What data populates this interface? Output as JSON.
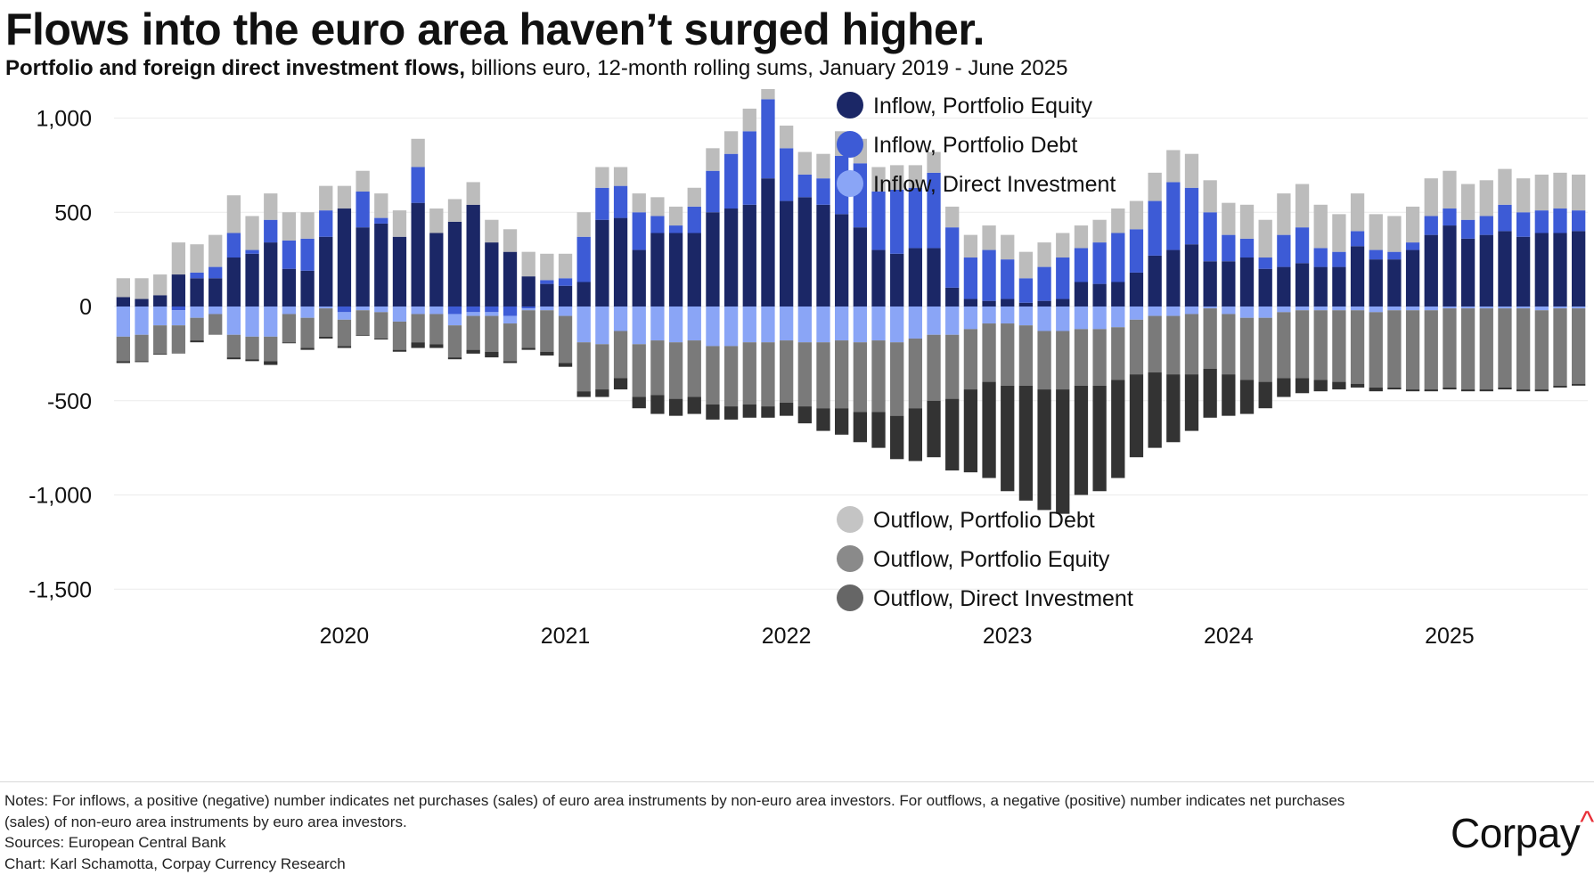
{
  "title": "Flows into the euro area haven’t surged higher.",
  "subtitle": {
    "bold": "Portfolio and foreign direct investment flows,",
    "rest": " billions euro, 12-month rolling sums, January 2019 - June 2025"
  },
  "notes": {
    "line1": "Notes: For inflows, a positive (negative) number indicates net purchases (sales) of euro area instruments by non-euro area investors. For outflows, a negative (positive) number indicates net purchases",
    "line2": "(sales) of non-euro area instruments by euro area investors.",
    "sources": "Sources: European Central Bank",
    "credit": "Chart: Karl Schamotta, Corpay Currency Research"
  },
  "logo": {
    "text": "Corpay",
    "mark": "^"
  },
  "chart_data": {
    "type": "bar",
    "stacked": true,
    "x_start": "January 2019",
    "x_end": "June 2025",
    "x_tick_labels": [
      "2020",
      "2021",
      "2022",
      "2023",
      "2024",
      "2025"
    ],
    "y_ticks": [
      1000,
      500,
      0,
      -500,
      -1000,
      -1500
    ],
    "y_tick_labels": [
      "1,000",
      "500",
      "0",
      "-500",
      "-1,000",
      "-1,500"
    ],
    "ylim": [
      -1620,
      1040
    ],
    "grid": true,
    "legend_placement": "top-center and bottom-center",
    "series": [
      {
        "name": "Inflow, Portfolio Equity",
        "color": "#1b2766",
        "values": [
          50,
          40,
          60,
          170,
          150,
          150,
          260,
          280,
          340,
          200,
          190,
          370,
          520,
          420,
          440,
          370,
          550,
          390,
          450,
          540,
          340,
          290,
          160,
          120,
          110,
          130,
          460,
          470,
          300,
          390,
          390,
          390,
          500,
          520,
          540,
          680,
          560,
          580,
          540,
          490,
          420,
          300,
          280,
          310,
          310,
          100,
          40,
          30,
          40,
          20,
          30,
          40,
          130,
          120,
          130,
          180,
          270,
          300,
          330,
          240,
          240,
          260,
          200,
          210,
          230,
          210,
          210,
          320,
          250,
          250,
          300,
          380,
          430,
          360,
          380,
          400,
          370,
          390,
          390,
          400
        ]
      },
      {
        "name": "Inflow, Portfolio Debt",
        "color": "#3d5bd6",
        "values": [
          0,
          0,
          0,
          -20,
          30,
          60,
          130,
          20,
          120,
          150,
          170,
          140,
          -30,
          190,
          30,
          0,
          190,
          0,
          -40,
          -30,
          -30,
          -50,
          -10,
          20,
          40,
          240,
          170,
          170,
          200,
          90,
          40,
          140,
          220,
          290,
          390,
          420,
          280,
          120,
          140,
          310,
          340,
          310,
          340,
          320,
          400,
          320,
          220,
          270,
          210,
          130,
          180,
          220,
          180,
          220,
          260,
          230,
          290,
          360,
          300,
          260,
          140,
          100,
          60,
          170,
          190,
          100,
          80,
          80,
          50,
          40,
          40,
          100,
          90,
          100,
          100,
          140,
          130,
          120,
          130,
          110
        ]
      },
      {
        "name": "Inflow, Direct Investment",
        "color": "#8aa5f6",
        "values": [
          -160,
          -150,
          -100,
          -80,
          -60,
          -40,
          -150,
          -160,
          -160,
          -40,
          -60,
          -10,
          -40,
          -20,
          -30,
          -80,
          -40,
          -40,
          -60,
          -20,
          -20,
          -40,
          -10,
          -20,
          -50,
          -190,
          -200,
          -130,
          -200,
          -180,
          -190,
          -180,
          -210,
          -210,
          -190,
          -190,
          -180,
          -190,
          -190,
          -180,
          -190,
          -180,
          -190,
          -170,
          -150,
          -150,
          -120,
          -90,
          -90,
          -100,
          -130,
          -130,
          -120,
          -120,
          -110,
          -70,
          -50,
          -50,
          -40,
          -10,
          -40,
          -60,
          -60,
          -30,
          -20,
          -20,
          -20,
          -20,
          -30,
          -20,
          -20,
          -20,
          -10,
          -10,
          -10,
          -10,
          -10,
          -20,
          -10,
          -10
        ]
      },
      {
        "name": "Outflow, Portfolio Debt",
        "color": "#bcbcbc",
        "values": [
          100,
          110,
          110,
          170,
          150,
          170,
          200,
          180,
          140,
          150,
          140,
          130,
          120,
          110,
          130,
          140,
          150,
          130,
          120,
          120,
          120,
          120,
          130,
          140,
          130,
          130,
          110,
          100,
          100,
          100,
          100,
          100,
          120,
          120,
          120,
          110,
          120,
          120,
          130,
          130,
          130,
          130,
          130,
          120,
          110,
          110,
          120,
          130,
          130,
          140,
          130,
          130,
          120,
          120,
          130,
          150,
          150,
          170,
          180,
          170,
          170,
          180,
          200,
          220,
          230,
          230,
          200,
          200,
          190,
          190,
          190,
          200,
          200,
          190,
          190,
          190,
          180,
          190,
          190,
          190
        ]
      },
      {
        "name": "Outflow, Portfolio Equity",
        "color": "#7a7a7a",
        "values": [
          -130,
          -140,
          -150,
          -150,
          -120,
          -110,
          -120,
          -120,
          -130,
          -150,
          -160,
          -150,
          -140,
          -130,
          -140,
          -150,
          -150,
          -160,
          -170,
          -180,
          -190,
          -200,
          -200,
          -220,
          -250,
          -260,
          -240,
          -250,
          -280,
          -290,
          -300,
          -300,
          -310,
          -320,
          -330,
          -340,
          -330,
          -340,
          -350,
          -360,
          -370,
          -380,
          -390,
          -370,
          -350,
          -340,
          -320,
          -310,
          -330,
          -320,
          -310,
          -310,
          -300,
          -300,
          -280,
          -290,
          -300,
          -310,
          -320,
          -320,
          -320,
          -330,
          -340,
          -350,
          -360,
          -370,
          -380,
          -390,
          -400,
          -410,
          -420,
          -420,
          -420,
          -430,
          -430,
          -420,
          -430,
          -420,
          -410,
          -400
        ]
      },
      {
        "name": "Outflow, Direct Investment",
        "color": "#333333",
        "values": [
          -10,
          -5,
          -5,
          0,
          -10,
          0,
          -10,
          -10,
          -20,
          -5,
          -10,
          -10,
          -10,
          -5,
          -5,
          -10,
          -30,
          -20,
          -10,
          -20,
          -30,
          -10,
          -10,
          -20,
          -20,
          -30,
          -40,
          -60,
          -60,
          -100,
          -90,
          -90,
          -80,
          -70,
          -70,
          -60,
          -70,
          -90,
          -120,
          -140,
          -160,
          -190,
          -230,
          -280,
          -300,
          -380,
          -440,
          -510,
          -560,
          -610,
          -640,
          -660,
          -580,
          -560,
          -520,
          -440,
          -400,
          -360,
          -300,
          -260,
          -220,
          -180,
          -140,
          -100,
          -80,
          -60,
          -40,
          -20,
          -20,
          -10,
          -10,
          -10,
          -10,
          -10,
          -10,
          -10,
          -10,
          -10,
          -10,
          -10
        ]
      }
    ],
    "totals_hint": "stacked bars; positive values stack upward from zero, negative values stack downward"
  },
  "legend_top": [
    {
      "label": "Inflow, Portfolio Equity",
      "color": "#1b2766"
    },
    {
      "label": "Inflow, Portfolio Debt",
      "color": "#3d5bd6"
    },
    {
      "label": "Inflow, Direct Investment",
      "color": "#8aa5f6"
    }
  ],
  "legend_bottom": [
    {
      "label": "Outflow, Portfolio Debt",
      "color": "#c4c4c4"
    },
    {
      "label": "Outflow, Portfolio Equity",
      "color": "#8a8a8a"
    },
    {
      "label": "Outflow, Direct Investment",
      "color": "#666666"
    }
  ]
}
